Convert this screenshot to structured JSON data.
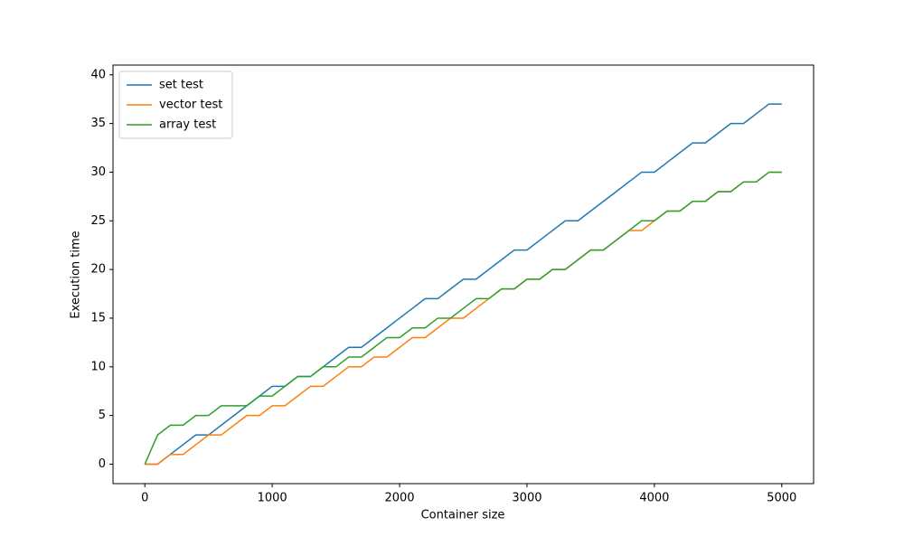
{
  "chart_data": {
    "type": "line",
    "xlabel": "Container size",
    "ylabel": "Execution time",
    "x": [
      0,
      100,
      200,
      300,
      400,
      500,
      600,
      700,
      800,
      900,
      1000,
      1100,
      1200,
      1300,
      1400,
      1500,
      1600,
      1700,
      1800,
      1900,
      2000,
      2100,
      2200,
      2300,
      2400,
      2500,
      2600,
      2700,
      2800,
      2900,
      3000,
      3100,
      3200,
      3300,
      3400,
      3500,
      3600,
      3700,
      3800,
      3900,
      4000,
      4100,
      4200,
      4300,
      4400,
      4500,
      4600,
      4700,
      4800,
      4900,
      5000
    ],
    "series": [
      {
        "name": "set test",
        "color": "#1f77b4",
        "values": [
          0,
          0,
          1,
          2,
          3,
          3,
          4,
          5,
          6,
          7,
          8,
          8,
          9,
          9,
          10,
          11,
          12,
          12,
          13,
          14,
          15,
          16,
          17,
          17,
          18,
          19,
          19,
          20,
          21,
          22,
          22,
          23,
          24,
          25,
          25,
          26,
          27,
          28,
          29,
          30,
          30,
          31,
          32,
          33,
          33,
          34,
          35,
          35,
          36,
          37,
          37
        ]
      },
      {
        "name": "vector test",
        "color": "#ff7f0e",
        "values": [
          0,
          0,
          1,
          1,
          2,
          3,
          3,
          4,
          5,
          5,
          6,
          6,
          7,
          8,
          8,
          9,
          10,
          10,
          11,
          11,
          12,
          13,
          13,
          14,
          15,
          15,
          16,
          17,
          18,
          18,
          19,
          19,
          20,
          20,
          21,
          22,
          22,
          23,
          24,
          24,
          25,
          26,
          26,
          27,
          27,
          28,
          28,
          29,
          29,
          30,
          30
        ]
      },
      {
        "name": "array test",
        "color": "#2ca02c",
        "values": [
          0,
          3,
          4,
          4,
          5,
          5,
          6,
          6,
          6,
          7,
          7,
          8,
          9,
          9,
          10,
          10,
          11,
          11,
          12,
          13,
          13,
          14,
          14,
          15,
          15,
          16,
          17,
          17,
          18,
          18,
          19,
          19,
          20,
          20,
          21,
          22,
          22,
          23,
          24,
          25,
          25,
          26,
          26,
          27,
          27,
          28,
          28,
          29,
          29,
          30,
          30
        ]
      }
    ],
    "xlim": [
      -250,
      5250
    ],
    "xticks": [
      0,
      1000,
      2000,
      3000,
      4000,
      5000
    ],
    "ylim": [
      -2,
      41
    ],
    "yticks": [
      0,
      5,
      10,
      15,
      20,
      25,
      30,
      35,
      40
    ],
    "legend": "upper left"
  }
}
